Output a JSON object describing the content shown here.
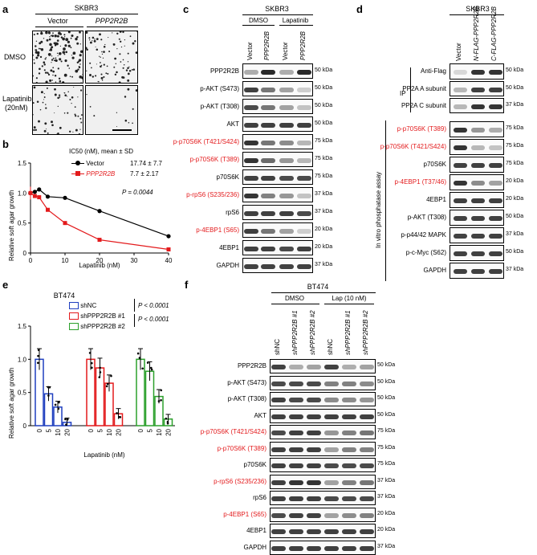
{
  "panel_letters": [
    "a",
    "b",
    "c",
    "d",
    "e",
    "f"
  ],
  "panel_a": {
    "cell_line": "SKBR3",
    "columns": [
      "Vector",
      "PPP2R2B"
    ],
    "rows": [
      "DMSO",
      "Lapatinib",
      "(20nM)"
    ]
  },
  "panel_b": {
    "ylabel": "Relative soft agar growth",
    "xlabel": "Lapatinib (nM)",
    "legend_title": "IC50 (nM), mean ± SD",
    "legend": [
      {
        "name": "Vector",
        "ic50": "17.74 ± 7.7"
      },
      {
        "name": "PPP2R2B",
        "ic50": "7.7 ± 2.17"
      }
    ],
    "pvalue": "P = 0.0044",
    "xticks": [
      "0",
      "10",
      "20",
      "30",
      "40"
    ],
    "yticks": [
      "0",
      "0.5",
      "1.0",
      "1.5"
    ]
  },
  "chart_data": [
    {
      "type": "line",
      "xlabel": "Lapatinib (nM)",
      "ylabel": "Relative soft agar growth",
      "xlim": [
        0,
        40
      ],
      "ylim": [
        0,
        1.5
      ],
      "series": [
        {
          "name": "Vector",
          "color": "#000000",
          "x": [
            0,
            1.25,
            2.5,
            5,
            10,
            20,
            40
          ],
          "y": [
            1.0,
            1.02,
            1.06,
            0.94,
            0.92,
            0.7,
            0.28
          ]
        },
        {
          "name": "PPP2R2B",
          "color": "#e31a1c",
          "x": [
            0,
            1.25,
            2.5,
            5,
            10,
            20,
            40
          ],
          "y": [
            1.0,
            0.95,
            0.93,
            0.72,
            0.5,
            0.22,
            0.06
          ]
        }
      ]
    },
    {
      "type": "bar",
      "title": "BT474",
      "xlabel": "Lapatinib (nM)",
      "ylabel": "Relative soft agar growth",
      "ylim": [
        0,
        1.5
      ],
      "categories": [
        "0",
        "5",
        "10",
        "20"
      ],
      "series": [
        {
          "name": "shNC",
          "color": "#1f3fbf",
          "values": [
            1.0,
            0.48,
            0.28,
            0.05
          ]
        },
        {
          "name": "shPPP2R2B #1",
          "color": "#e31a1c",
          "values": [
            1.0,
            0.87,
            0.64,
            0.18
          ]
        },
        {
          "name": "shPPP2R2B #2",
          "color": "#2ca02c",
          "values": [
            1.0,
            0.82,
            0.44,
            0.1
          ]
        }
      ],
      "annotations": [
        "P < 0.0001",
        "P < 0.0001"
      ]
    }
  ],
  "panel_c": {
    "cell_line": "SKBR3",
    "groups": [
      "DMSO",
      "Lapatinib"
    ],
    "lanes": [
      "Vector",
      "PPP2R2B",
      "Vector",
      "PPP2R2B"
    ],
    "blots": [
      {
        "label": "PPP2R2B",
        "red": false,
        "kda": [
          "50 kDa"
        ]
      },
      {
        "label": "p-AKT (S473)",
        "red": false,
        "kda": [
          "50 kDa"
        ]
      },
      {
        "label": "p-AKT (T308)",
        "red": false,
        "kda": [
          "50 kDa"
        ]
      },
      {
        "label": "AKT",
        "red": false,
        "kda": [
          "50 kDa"
        ]
      },
      {
        "label": "p-p70S6K (T421/S424)",
        "red": true,
        "kda": [
          "75 kDa"
        ]
      },
      {
        "label": "p-p70S6K (T389)",
        "red": true,
        "kda": [
          "75 kDa"
        ]
      },
      {
        "label": "p70S6K",
        "red": false,
        "kda": [
          "75 kDa"
        ]
      },
      {
        "label": "p-rpS6 (S235/236)",
        "red": true,
        "kda": [
          "37 kDa"
        ]
      },
      {
        "label": "rpS6",
        "red": false,
        "kda": [
          "37 kDa"
        ]
      },
      {
        "label": "p-4EBP1 (S65)",
        "red": true,
        "kda": [
          "20 kDa"
        ]
      },
      {
        "label": "4EBP1",
        "red": false,
        "kda": [
          "20 kDa"
        ]
      },
      {
        "label": "GAPDH",
        "red": false,
        "kda": [
          "37 kDa"
        ]
      }
    ]
  },
  "panel_d": {
    "cell_line": "SKBR3",
    "lanes": [
      "Vector",
      "N-FLAG-PPP2R2B",
      "C-FLAG-PPP2R2B"
    ],
    "ip_label": "IP",
    "assay_label": "In vitro phosphatase assay",
    "blots": [
      {
        "label": "Anti-Flag",
        "red": false,
        "kda": [
          "50 kDa"
        ]
      },
      {
        "label": "PP2A A subunit",
        "red": false,
        "kda": [
          "50 kDa"
        ]
      },
      {
        "label": "PP2A C subunit",
        "red": false,
        "kda": [
          "37 kDa"
        ]
      },
      {
        "label": "p-p70S6K (T389)",
        "red": true,
        "kda": [
          "75 kDa"
        ]
      },
      {
        "label": "p-p70S6K (T421/S424)",
        "red": true,
        "kda": [
          "75 kDa"
        ]
      },
      {
        "label": "p70S6K",
        "red": false,
        "kda": [
          "75 kDa"
        ]
      },
      {
        "label": "p-4EBP1 (T37/46)",
        "red": true,
        "kda": [
          "20 kDa"
        ]
      },
      {
        "label": "4EBP1",
        "red": false,
        "kda": [
          "20 kDa"
        ]
      },
      {
        "label": "p-AKT (T308)",
        "red": false,
        "kda": [
          "50 kDa"
        ]
      },
      {
        "label": "p-p44/42 MAPK",
        "red": false,
        "kda": [
          "37 kDa"
        ]
      },
      {
        "label": "p-c-Myc (S62)",
        "red": false,
        "kda": [
          "50 kDa"
        ]
      },
      {
        "label": "GAPDH",
        "red": false,
        "kda": [
          "37 kDa"
        ]
      }
    ]
  },
  "panel_e": {
    "title": "BT474",
    "ylabel": "Relative soft agar growth",
    "xlabel": "Lapatinib (nM)",
    "legend": [
      "shNC",
      "shPPP2R2B #1",
      "shPPP2R2B #2"
    ],
    "pvalues": [
      "P < 0.0001",
      "P < 0.0001"
    ],
    "yticks": [
      "0",
      "0.5",
      "1.0",
      "1.5"
    ]
  },
  "panel_f": {
    "cell_line": "BT474",
    "groups": [
      "DMSO",
      "Lap (10 nM)"
    ],
    "lanes": [
      "shNC",
      "shPPP2R2B #1",
      "shPPP2R2B #2",
      "shNC",
      "shPPP2R2B #1",
      "shPPP2R2B #2"
    ],
    "blots": [
      {
        "label": "PPP2R2B",
        "red": false,
        "kda": [
          "50 kDa"
        ]
      },
      {
        "label": "p-AKT (S473)",
        "red": false,
        "kda": [
          "50 kDa"
        ]
      },
      {
        "label": "p-AKT (T308)",
        "red": false,
        "kda": [
          "50 kDa"
        ]
      },
      {
        "label": "AKT",
        "red": false,
        "kda": [
          "50 kDa"
        ]
      },
      {
        "label": "p-p70S6K (T421/S424)",
        "red": true,
        "kda": [
          "75 kDa"
        ]
      },
      {
        "label": "p-p70S6K (T389)",
        "red": true,
        "kda": [
          "75 kDa"
        ]
      },
      {
        "label": "p70S6K",
        "red": false,
        "kda": [
          "75 kDa"
        ]
      },
      {
        "label": "p-rpS6 (S235/236)",
        "red": true,
        "kda": [
          "37 kDa"
        ]
      },
      {
        "label": "rpS6",
        "red": false,
        "kda": [
          "37 kDa"
        ]
      },
      {
        "label": "p-4EBP1 (S65)",
        "red": true,
        "kda": [
          "20 kDa"
        ]
      },
      {
        "label": "4EBP1",
        "red": false,
        "kda": [
          "20 kDa"
        ]
      },
      {
        "label": "GAPDH",
        "red": false,
        "kda": [
          "37 kDa"
        ]
      }
    ]
  }
}
